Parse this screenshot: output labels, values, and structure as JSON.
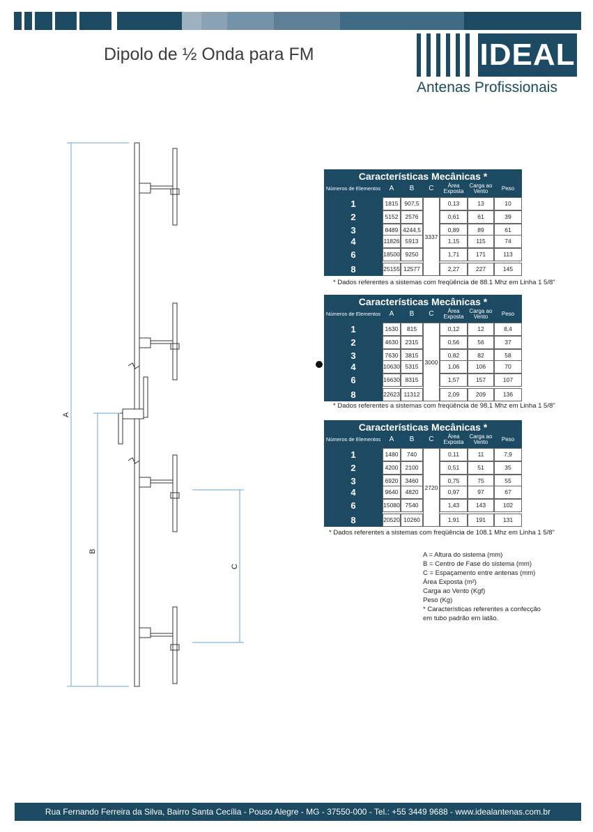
{
  "title": "Dipolo de ½ Onda para FM",
  "logo": {
    "name": "IDEAL",
    "tagline": "Antenas Profissionais"
  },
  "colors": {
    "brand": "#1b4a62",
    "bar_light": "#9db1c0"
  },
  "drawing": {
    "label_a": "A",
    "label_b": "B",
    "label_c": "C"
  },
  "tables": [
    {
      "title": "Características Mecânicas *",
      "headers": {
        "elements": "Números de Elementos",
        "a": "A",
        "b": "B",
        "c": "C",
        "area": "Área Exposta",
        "carga": "Carga ao Vento",
        "peso": "Peso"
      },
      "c_value": "3337",
      "rows": [
        {
          "n": "1",
          "a": "1815",
          "b": "907,5",
          "area": "0,13",
          "carga": "13",
          "peso": "10"
        },
        {
          "n": "2",
          "a": "5152",
          "b": "2576",
          "area": "0,61",
          "carga": "61",
          "peso": "39"
        },
        {
          "n": "3",
          "a": "8489",
          "b": "4244,5",
          "area": "0,89",
          "carga": "89",
          "peso": "61"
        },
        {
          "n": "4",
          "a": "11826",
          "b": "5913",
          "area": "1,15",
          "carga": "115",
          "peso": "74"
        },
        {
          "n": "6",
          "a": "18500",
          "b": "9250",
          "area": "1,71",
          "carga": "171",
          "peso": "113"
        },
        {
          "n": "8",
          "a": "25155",
          "b": "12577",
          "area": "2,27",
          "carga": "227",
          "peso": "145"
        }
      ],
      "note": "* Dados referentes a sistemas com freqüência de 88.1 Mhz em Linha 1 5/8\""
    },
    {
      "title": "Características Mecânicas *",
      "headers": {
        "elements": "Números de Elementos",
        "a": "A",
        "b": "B",
        "c": "C",
        "area": "Área Exposta",
        "carga": "Carga ao Vento",
        "peso": "Peso"
      },
      "c_value": "3000",
      "rows": [
        {
          "n": "1",
          "a": "1630",
          "b": "815",
          "area": "0,12",
          "carga": "12",
          "peso": "8,4"
        },
        {
          "n": "2",
          "a": "4630",
          "b": "2315",
          "area": "0,56",
          "carga": "56",
          "peso": "37"
        },
        {
          "n": "3",
          "a": "7630",
          "b": "3815",
          "area": "0,82",
          "carga": "82",
          "peso": "58"
        },
        {
          "n": "4",
          "a": "10630",
          "b": "5315",
          "area": "1,06",
          "carga": "106",
          "peso": "70"
        },
        {
          "n": "6",
          "a": "16630",
          "b": "8315",
          "area": "1,57",
          "carga": "157",
          "peso": "107"
        },
        {
          "n": "8",
          "a": "22623",
          "b": "11312",
          "area": "2,09",
          "carga": "209",
          "peso": "136"
        }
      ],
      "note": "* Dados referentes a sistemas com freqüência de 98.1 Mhz em Linha 1 5/8\""
    },
    {
      "title": "Características Mecânicas *",
      "headers": {
        "elements": "Números de Elementos",
        "a": "A",
        "b": "B",
        "c": "C",
        "area": "Área Exposta",
        "carga": "Carga ao Vento",
        "peso": "Peso"
      },
      "c_value": "2720",
      "rows": [
        {
          "n": "1",
          "a": "1480",
          "b": "740",
          "area": "0,11",
          "carga": "11",
          "peso": "7,9"
        },
        {
          "n": "2",
          "a": "4200",
          "b": "2100",
          "area": "0,51",
          "carga": "51",
          "peso": "35"
        },
        {
          "n": "3",
          "a": "6920",
          "b": "3460",
          "area": "0,75",
          "carga": "75",
          "peso": "55"
        },
        {
          "n": "4",
          "a": "9640",
          "b": "4820",
          "area": "0,97",
          "carga": "97",
          "peso": "67"
        },
        {
          "n": "6",
          "a": "15080",
          "b": "7540",
          "area": "1,43",
          "carga": "143",
          "peso": "102"
        },
        {
          "n": "8",
          "a": "20520",
          "b": "10260",
          "area": "1,91",
          "carga": "191",
          "peso": "131"
        }
      ],
      "note": "* Dados referentes a sistemas com freqüência de 108.1 Mhz em Linha 1 5/8\""
    }
  ],
  "legend": [
    "A = Altura do sistema (mm)",
    "B = Centro de Fase do sistema (mm)",
    "C = Espaçamento entre antenas (mm)",
    "Área Exposta (m²)",
    "Carga ao Vento (Kgf)",
    "Peso (Kg)",
    "* Características referentes a confecção",
    "em tubo padrão em latão."
  ],
  "footer": "Rua Fernando Ferreira da Silva, Bairro Santa Cecília - Pouso Alegre - MG - 37550-000 - Tel.: +55 3449 9688  - www.idealantenas.com.br"
}
